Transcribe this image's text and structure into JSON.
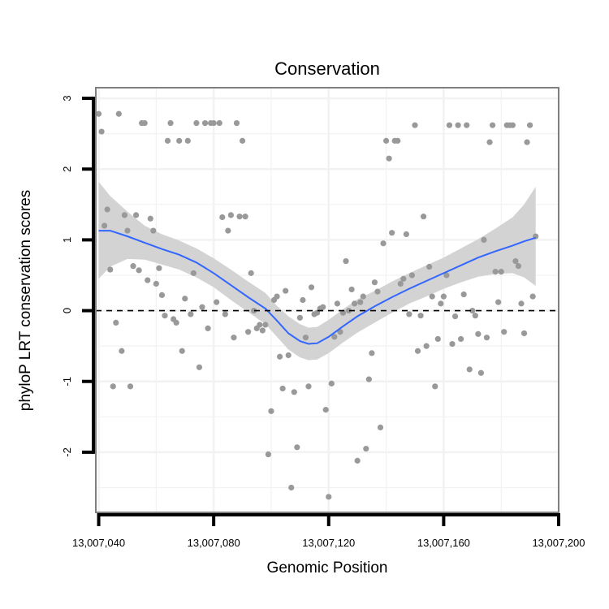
{
  "chart_data": {
    "type": "scatter",
    "title": "Conservation",
    "xlabel": "Genomic Position",
    "ylabel": "phyloP LRT conservation scores",
    "xlim": [
      13007039,
      13007200
    ],
    "ylim": [
      -2.85,
      3.15
    ],
    "x_ticks": [
      13007040,
      13007080,
      13007120,
      13007160,
      13007200
    ],
    "x_tick_labels": [
      "13,007,040",
      "13,007,080",
      "13,007,120",
      "13,007,160",
      "13,007,200"
    ],
    "y_ticks": [
      -2,
      -1,
      0,
      1,
      2,
      3
    ],
    "y_tick_labels": [
      "-2",
      "-1",
      "0",
      "1",
      "2",
      "3"
    ],
    "reference_line_y": 0,
    "grid": true,
    "colors": {
      "points": "#999999",
      "smooth_line": "#3366ff",
      "ribbon": "#d3d3d3",
      "border": "#7f7f7f",
      "grid": "#f2f2f2",
      "reference": "#000000"
    },
    "points": [
      {
        "x": 13007040,
        "y": 2.78
      },
      {
        "x": 13007041,
        "y": 2.53
      },
      {
        "x": 13007042,
        "y": 1.2
      },
      {
        "x": 13007043,
        "y": 1.43
      },
      {
        "x": 13007044,
        "y": 0.58
      },
      {
        "x": 13007045,
        "y": -1.07
      },
      {
        "x": 13007046,
        "y": -0.17
      },
      {
        "x": 13007047,
        "y": 2.78
      },
      {
        "x": 13007048,
        "y": -0.57
      },
      {
        "x": 13007049,
        "y": 1.35
      },
      {
        "x": 13007050,
        "y": 1.13
      },
      {
        "x": 13007051,
        "y": -1.07
      },
      {
        "x": 13007052,
        "y": 0.63
      },
      {
        "x": 13007053,
        "y": 1.35
      },
      {
        "x": 13007054,
        "y": 0.57
      },
      {
        "x": 13007055,
        "y": 2.65
      },
      {
        "x": 13007056,
        "y": 2.65
      },
      {
        "x": 13007057,
        "y": 0.43
      },
      {
        "x": 13007058,
        "y": 1.3
      },
      {
        "x": 13007059,
        "y": 1.13
      },
      {
        "x": 13007060,
        "y": 0.38
      },
      {
        "x": 13007061,
        "y": 0.6
      },
      {
        "x": 13007062,
        "y": 0.22
      },
      {
        "x": 13007063,
        "y": -0.07
      },
      {
        "x": 13007064,
        "y": 2.4
      },
      {
        "x": 13007065,
        "y": 2.65
      },
      {
        "x": 13007066,
        "y": -0.12
      },
      {
        "x": 13007067,
        "y": -0.17
      },
      {
        "x": 13007068,
        "y": 2.4
      },
      {
        "x": 13007069,
        "y": -0.57
      },
      {
        "x": 13007070,
        "y": 0.17
      },
      {
        "x": 13007071,
        "y": 2.4
      },
      {
        "x": 13007072,
        "y": -0.05
      },
      {
        "x": 13007073,
        "y": 0.53
      },
      {
        "x": 13007074,
        "y": 2.65
      },
      {
        "x": 13007075,
        "y": -0.8
      },
      {
        "x": 13007076,
        "y": 0.05
      },
      {
        "x": 13007077,
        "y": 2.65
      },
      {
        "x": 13007078,
        "y": -0.25
      },
      {
        "x": 13007079,
        "y": 2.65
      },
      {
        "x": 13007080,
        "y": 2.65
      },
      {
        "x": 13007081,
        "y": 0.12
      },
      {
        "x": 13007082,
        "y": 2.65
      },
      {
        "x": 13007083,
        "y": 1.32
      },
      {
        "x": 13007084,
        "y": -0.05
      },
      {
        "x": 13007085,
        "y": 1.13
      },
      {
        "x": 13007086,
        "y": 1.35
      },
      {
        "x": 13007087,
        "y": -0.38
      },
      {
        "x": 13007088,
        "y": 2.65
      },
      {
        "x": 13007089,
        "y": 1.33
      },
      {
        "x": 13007090,
        "y": 2.4
      },
      {
        "x": 13007091,
        "y": 1.33
      },
      {
        "x": 13007092,
        "y": -0.3
      },
      {
        "x": 13007093,
        "y": 0.53
      },
      {
        "x": 13007094,
        "y": 0.0
      },
      {
        "x": 13007095,
        "y": -0.25
      },
      {
        "x": 13007096,
        "y": -0.2
      },
      {
        "x": 13007097,
        "y": -0.28
      },
      {
        "x": 13007098,
        "y": -0.2
      },
      {
        "x": 13007099,
        "y": -2.03
      },
      {
        "x": 13007100,
        "y": -1.42
      },
      {
        "x": 13007101,
        "y": 0.15
      },
      {
        "x": 13007102,
        "y": 0.2
      },
      {
        "x": 13007103,
        "y": -0.65
      },
      {
        "x": 13007104,
        "y": -1.1
      },
      {
        "x": 13007105,
        "y": 0.28
      },
      {
        "x": 13007106,
        "y": -0.63
      },
      {
        "x": 13007107,
        "y": -2.5
      },
      {
        "x": 13007108,
        "y": -1.15
      },
      {
        "x": 13007109,
        "y": -1.93
      },
      {
        "x": 13007110,
        "y": -0.1
      },
      {
        "x": 13007111,
        "y": 0.15
      },
      {
        "x": 13007112,
        "y": -0.38
      },
      {
        "x": 13007113,
        "y": -1.07
      },
      {
        "x": 13007114,
        "y": 0.33
      },
      {
        "x": 13007115,
        "y": -0.05
      },
      {
        "x": 13007116,
        "y": -0.03
      },
      {
        "x": 13007117,
        "y": 0.03
      },
      {
        "x": 13007118,
        "y": 0.05
      },
      {
        "x": 13007119,
        "y": -1.4
      },
      {
        "x": 13007120,
        "y": -2.63
      },
      {
        "x": 13007121,
        "y": -1.03
      },
      {
        "x": 13007122,
        "y": -0.37
      },
      {
        "x": 13007123,
        "y": 0.1
      },
      {
        "x": 13007124,
        "y": -0.3
      },
      {
        "x": 13007125,
        "y": -0.03
      },
      {
        "x": 13007126,
        "y": 0.7
      },
      {
        "x": 13007127,
        "y": 0.0
      },
      {
        "x": 13007128,
        "y": 0.3
      },
      {
        "x": 13007129,
        "y": 0.1
      },
      {
        "x": 13007130,
        "y": -2.12
      },
      {
        "x": 13007131,
        "y": 0.12
      },
      {
        "x": 13007132,
        "y": 0.2
      },
      {
        "x": 13007133,
        "y": -1.95
      },
      {
        "x": 13007134,
        "y": -0.97
      },
      {
        "x": 13007135,
        "y": -0.6
      },
      {
        "x": 13007136,
        "y": 0.4
      },
      {
        "x": 13007137,
        "y": 0.27
      },
      {
        "x": 13007138,
        "y": -1.65
      },
      {
        "x": 13007139,
        "y": 0.95
      },
      {
        "x": 13007140,
        "y": 2.4
      },
      {
        "x": 13007141,
        "y": 2.15
      },
      {
        "x": 13007142,
        "y": 1.1
      },
      {
        "x": 13007143,
        "y": 2.4
      },
      {
        "x": 13007144,
        "y": 2.4
      },
      {
        "x": 13007145,
        "y": 0.38
      },
      {
        "x": 13007146,
        "y": 0.45
      },
      {
        "x": 13007147,
        "y": 1.08
      },
      {
        "x": 13007148,
        "y": -0.05
      },
      {
        "x": 13007149,
        "y": 0.5
      },
      {
        "x": 13007150,
        "y": 2.62
      },
      {
        "x": 13007151,
        "y": -0.57
      },
      {
        "x": 13007152,
        "y": -0.07
      },
      {
        "x": 13007153,
        "y": 1.33
      },
      {
        "x": 13007154,
        "y": -0.5
      },
      {
        "x": 13007155,
        "y": 0.62
      },
      {
        "x": 13007156,
        "y": 0.2
      },
      {
        "x": 13007157,
        "y": -1.07
      },
      {
        "x": 13007158,
        "y": -0.4
      },
      {
        "x": 13007159,
        "y": 0.1
      },
      {
        "x": 13007160,
        "y": 0.2
      },
      {
        "x": 13007161,
        "y": 0.5
      },
      {
        "x": 13007162,
        "y": 2.62
      },
      {
        "x": 13007163,
        "y": -0.47
      },
      {
        "x": 13007164,
        "y": -0.08
      },
      {
        "x": 13007165,
        "y": 2.62
      },
      {
        "x": 13007166,
        "y": -0.4
      },
      {
        "x": 13007167,
        "y": 0.23
      },
      {
        "x": 13007168,
        "y": 2.62
      },
      {
        "x": 13007169,
        "y": -0.83
      },
      {
        "x": 13007170,
        "y": 0.0
      },
      {
        "x": 13007171,
        "y": -0.07
      },
      {
        "x": 13007172,
        "y": -0.33
      },
      {
        "x": 13007173,
        "y": -0.88
      },
      {
        "x": 13007174,
        "y": 1.0
      },
      {
        "x": 13007175,
        "y": -0.38
      },
      {
        "x": 13007176,
        "y": 2.38
      },
      {
        "x": 13007177,
        "y": 2.62
      },
      {
        "x": 13007178,
        "y": 0.55
      },
      {
        "x": 13007179,
        "y": 0.12
      },
      {
        "x": 13007180,
        "y": 0.55
      },
      {
        "x": 13007181,
        "y": -0.3
      },
      {
        "x": 13007182,
        "y": 2.62
      },
      {
        "x": 13007183,
        "y": 2.62
      },
      {
        "x": 13007184,
        "y": 2.62
      },
      {
        "x": 13007185,
        "y": 0.7
      },
      {
        "x": 13007186,
        "y": 0.63
      },
      {
        "x": 13007187,
        "y": 0.1
      },
      {
        "x": 13007188,
        "y": -0.32
      },
      {
        "x": 13007189,
        "y": 2.38
      },
      {
        "x": 13007190,
        "y": 2.62
      },
      {
        "x": 13007191,
        "y": 0.2
      },
      {
        "x": 13007192,
        "y": 1.05
      }
    ],
    "smooth": [
      {
        "x": 13007040,
        "y": 1.13,
        "lo": 0.45,
        "hi": 1.82
      },
      {
        "x": 13007044,
        "y": 1.13,
        "lo": 0.62,
        "hi": 1.62
      },
      {
        "x": 13007050,
        "y": 1.05,
        "lo": 0.73,
        "hi": 1.4
      },
      {
        "x": 13007056,
        "y": 0.96,
        "lo": 0.72,
        "hi": 1.2
      },
      {
        "x": 13007062,
        "y": 0.87,
        "lo": 0.65,
        "hi": 1.08
      },
      {
        "x": 13007068,
        "y": 0.79,
        "lo": 0.58,
        "hi": 0.99
      },
      {
        "x": 13007074,
        "y": 0.68,
        "lo": 0.47,
        "hi": 0.88
      },
      {
        "x": 13007080,
        "y": 0.53,
        "lo": 0.33,
        "hi": 0.74
      },
      {
        "x": 13007086,
        "y": 0.36,
        "lo": 0.15,
        "hi": 0.58
      },
      {
        "x": 13007092,
        "y": 0.19,
        "lo": -0.02,
        "hi": 0.41
      },
      {
        "x": 13007098,
        "y": 0.03,
        "lo": -0.19,
        "hi": 0.25
      },
      {
        "x": 13007102,
        "y": -0.14,
        "lo": -0.37,
        "hi": 0.07
      },
      {
        "x": 13007106,
        "y": -0.32,
        "lo": -0.55,
        "hi": -0.08
      },
      {
        "x": 13007110,
        "y": -0.43,
        "lo": -0.66,
        "hi": -0.19
      },
      {
        "x": 13007113,
        "y": -0.47,
        "lo": -0.7,
        "hi": -0.24
      },
      {
        "x": 13007116,
        "y": -0.46,
        "lo": -0.69,
        "hi": -0.23
      },
      {
        "x": 13007120,
        "y": -0.37,
        "lo": -0.6,
        "hi": -0.13
      },
      {
        "x": 13007125,
        "y": -0.22,
        "lo": -0.45,
        "hi": 0.02
      },
      {
        "x": 13007130,
        "y": -0.08,
        "lo": -0.31,
        "hi": 0.16
      },
      {
        "x": 13007136,
        "y": 0.06,
        "lo": -0.17,
        "hi": 0.28
      },
      {
        "x": 13007142,
        "y": 0.19,
        "lo": -0.03,
        "hi": 0.41
      },
      {
        "x": 13007148,
        "y": 0.31,
        "lo": 0.1,
        "hi": 0.53
      },
      {
        "x": 13007154,
        "y": 0.42,
        "lo": 0.2,
        "hi": 0.64
      },
      {
        "x": 13007160,
        "y": 0.53,
        "lo": 0.31,
        "hi": 0.75
      },
      {
        "x": 13007166,
        "y": 0.64,
        "lo": 0.4,
        "hi": 0.88
      },
      {
        "x": 13007172,
        "y": 0.75,
        "lo": 0.48,
        "hi": 1.01
      },
      {
        "x": 13007178,
        "y": 0.84,
        "lo": 0.52,
        "hi": 1.16
      },
      {
        "x": 13007184,
        "y": 0.92,
        "lo": 0.53,
        "hi": 1.32
      },
      {
        "x": 13007188,
        "y": 0.98,
        "lo": 0.47,
        "hi": 1.5
      },
      {
        "x": 13007192,
        "y": 1.03,
        "lo": 0.35,
        "hi": 1.75
      }
    ]
  }
}
